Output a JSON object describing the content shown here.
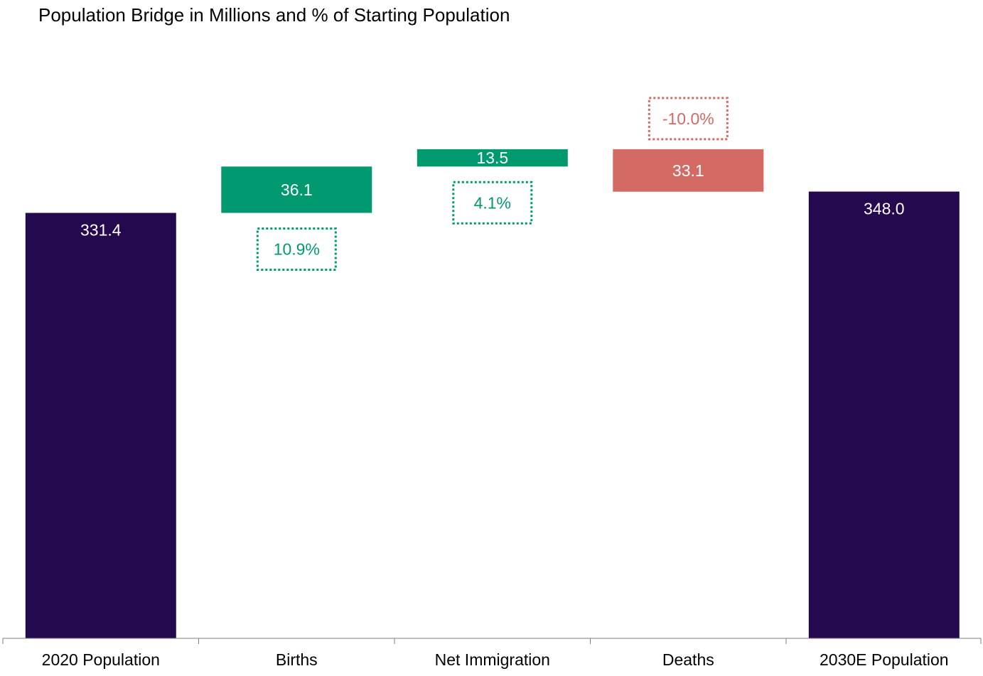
{
  "chart_data": {
    "type": "bar",
    "subtype": "waterfall",
    "title": "Population Bridge in Millions and % of Starting Population",
    "xlabel": "",
    "ylabel": "",
    "ylim": [
      0,
      405
    ],
    "grid": false,
    "legend": "none",
    "categories": [
      "2020 Population",
      "Births",
      "Net Immigration",
      "Deaths",
      "2030E Population"
    ],
    "steps": [
      {
        "category": "2020 Population",
        "kind": "total",
        "value": 331.4,
        "value_label": "331.4"
      },
      {
        "category": "Births",
        "kind": "increase",
        "value": 36.1,
        "value_label": "36.1",
        "pct_label": "10.9%"
      },
      {
        "category": "Net Immigration",
        "kind": "increase",
        "value": 13.5,
        "value_label": "13.5",
        "pct_label": "4.1%"
      },
      {
        "category": "Deaths",
        "kind": "decrease",
        "value": -33.1,
        "value_label": "33.1",
        "pct_label": "-10.0%"
      },
      {
        "category": "2030E Population",
        "kind": "total",
        "value": 348.0,
        "value_label": "348.0"
      }
    ],
    "colors": {
      "total": "#24094f",
      "increase": "#009970",
      "decrease": "#d46a64",
      "axis": "#7f7f7f"
    }
  }
}
